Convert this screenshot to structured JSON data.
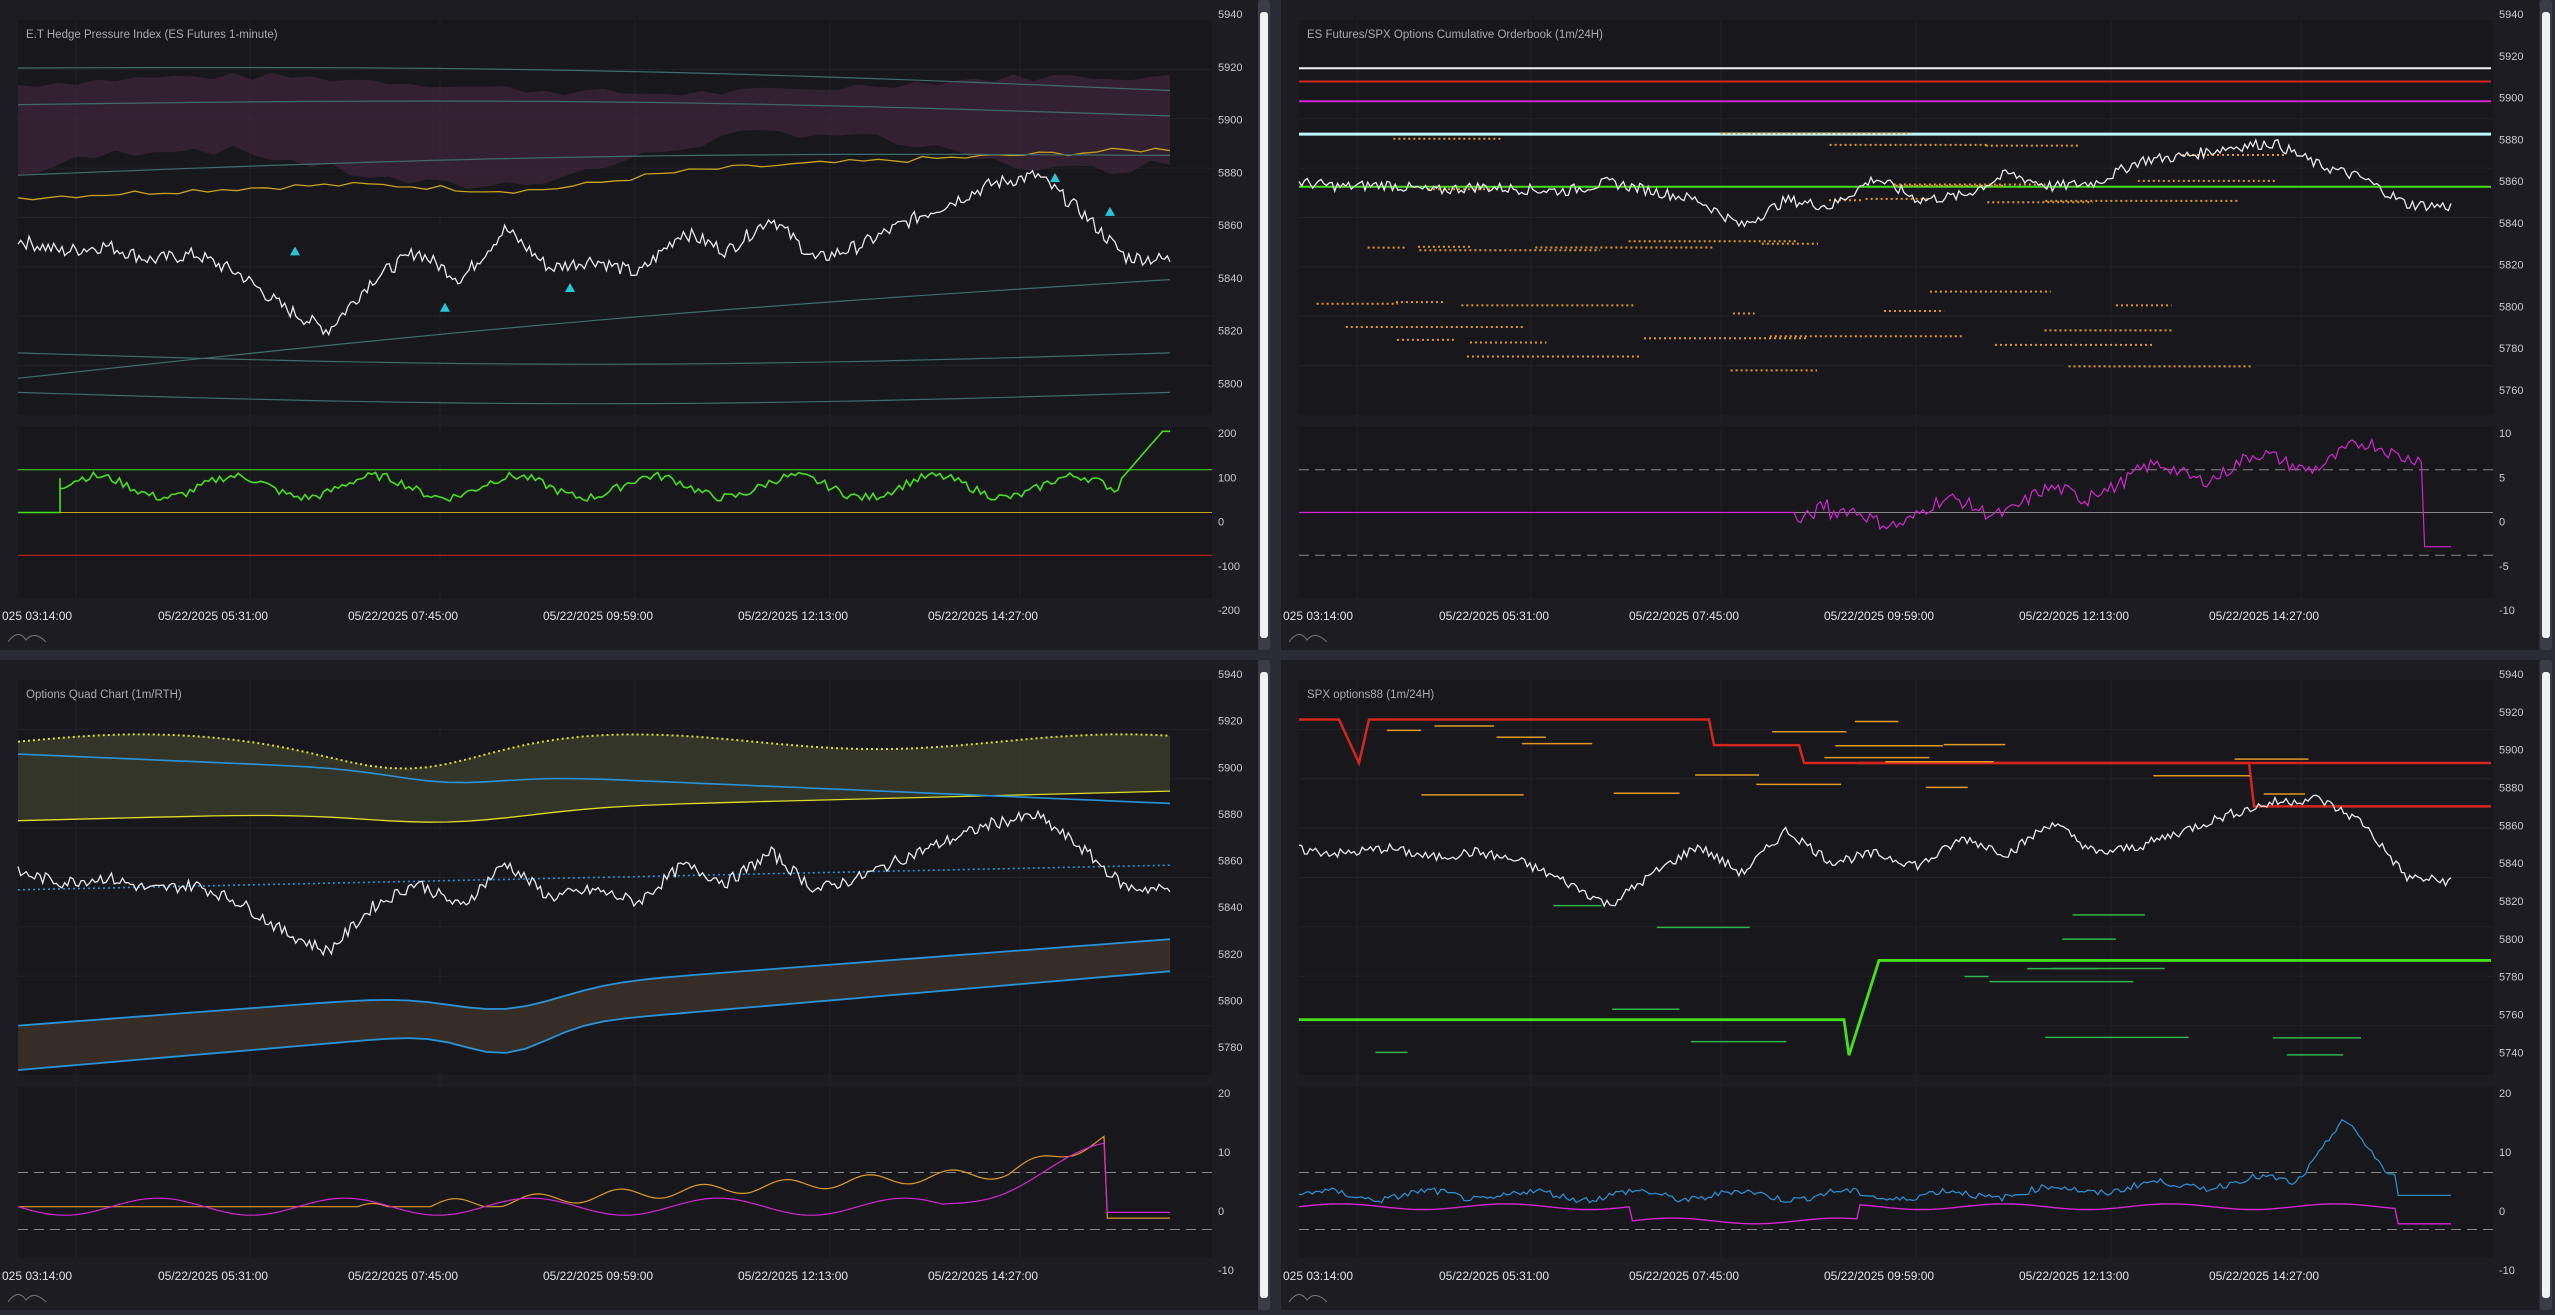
{
  "colors": {
    "price": "#e9e9ee",
    "gold": "#c9a21c",
    "purple_band": "#4a2a44",
    "teal": "#3f6d6d",
    "cyan": "#25c7d9",
    "green": "#45e01a",
    "red": "#d5261e",
    "magenta": "#d325d1",
    "blue": "#2a93d8",
    "yellow": "#dede28",
    "orange": "#e09a22"
  },
  "time_axis": {
    "labels": [
      "025 03:14:00",
      "05/22/2025 05:31:00",
      "05/22/2025 07:45:00",
      "05/22/2025 09:59:00",
      "05/22/2025 12:13:00",
      "05/22/2025 14:27:00"
    ]
  },
  "panels": [
    {
      "title": "E.T Hedge Pressure Index (ES Futures 1-minute)",
      "y_ticks": [
        "5940",
        "5920",
        "5900",
        "5880",
        "5860",
        "5840",
        "5820",
        "5800"
      ],
      "sub_ticks": [
        "200",
        "100",
        "0",
        "-100",
        "-200"
      ]
    },
    {
      "title": "ES Futures/SPX Options Cumulative Orderbook (1m/24H)",
      "y_ticks": [
        "5940",
        "5920",
        "5900",
        "5880",
        "5860",
        "5840",
        "5820",
        "5800",
        "5780",
        "5760"
      ],
      "sub_ticks": [
        "10",
        "5",
        "0",
        "-5",
        "-10"
      ]
    },
    {
      "title": "Options Quad Chart (1m/RTH)",
      "y_ticks": [
        "5940",
        "5920",
        "5900",
        "5880",
        "5860",
        "5840",
        "5820",
        "5800",
        "5780"
      ],
      "sub_ticks": [
        "20",
        "10",
        "0",
        "-10"
      ]
    },
    {
      "title": "SPX options88 (1m/24H)",
      "y_ticks": [
        "5940",
        "5920",
        "5900",
        "5880",
        "5860",
        "5840",
        "5820",
        "5800",
        "5780",
        "5760",
        "5740"
      ],
      "sub_ticks": [
        "20",
        "10",
        "0",
        "-10"
      ]
    }
  ],
  "chart_data": [
    {
      "type": "line",
      "title": "E.T Hedge Pressure Index (ES Futures 1-minute)",
      "x_range": [
        "05/22/2025 03:14:00",
        "05/22/2025 16:00:00"
      ],
      "ylim": [
        5800,
        5940
      ],
      "series": [
        {
          "values": [
            5862,
            5858,
            5860,
            5855,
            5857,
            5850,
            5838,
            5830,
            5848,
            5858,
            5848,
            5866,
            5852,
            5855,
            5850,
            5865,
            5858,
            5870,
            5855,
            5860,
            5868,
            5875,
            5882,
            5885,
            5872,
            5856,
            5855
          ]
        }
      ],
      "markers": [
        {
          "shape": "triangle-up",
          "values": [
            5858,
            5838,
            5845,
            5884,
            5872
          ]
        }
      ],
      "sub_chart": {
        "ylim": [
          -200,
          200
        ],
        "levels": [
          100,
          0,
          -100
        ]
      }
    },
    {
      "type": "line",
      "title": "ES Futures/SPX Options Cumulative Orderbook (1m/24H)",
      "x_range": [
        "05/22/2025 03:14:00",
        "05/22/2025 16:00:00"
      ],
      "ylim": [
        5760,
        5940
      ],
      "series": [
        {
          "values": [
            5866,
            5864,
            5865,
            5862,
            5864,
            5863,
            5862,
            5866,
            5862,
            5858,
            5846,
            5858,
            5855,
            5868,
            5858,
            5860,
            5870,
            5864,
            5866,
            5876,
            5878,
            5882,
            5884,
            5874,
            5868,
            5856,
            5855
          ]
        }
      ],
      "horizontal_levels": [
        {
          "value": 5918,
          "color": "white"
        },
        {
          "value": 5912,
          "color": "red"
        },
        {
          "value": 5903,
          "color": "magenta"
        },
        {
          "value": 5888,
          "color": "cyan"
        },
        {
          "value": 5864,
          "color": "green"
        }
      ],
      "sub_chart": {
        "ylim": [
          -10,
          10
        ],
        "levels": [
          5,
          0,
          -5
        ]
      }
    },
    {
      "type": "line",
      "title": "Options Quad Chart (1m/RTH)",
      "x_range": [
        "05/22/2025 03:14:00",
        "05/22/2025 16:00:00"
      ],
      "ylim": [
        5780,
        5940
      ],
      "series": [
        {
          "values": [
            5862,
            5858,
            5860,
            5855,
            5857,
            5850,
            5838,
            5830,
            5848,
            5858,
            5848,
            5866,
            5852,
            5855,
            5850,
            5865,
            5858,
            5870,
            5855,
            5860,
            5868,
            5875,
            5882,
            5885,
            5872,
            5856,
            5855
          ]
        }
      ],
      "sub_chart": {
        "ylim": [
          -10,
          20
        ],
        "levels": [
          5,
          -5
        ]
      }
    },
    {
      "type": "line",
      "title": "SPX options88 (1m/24H)",
      "x_range": [
        "05/22/2025 03:14:00",
        "05/22/2025 16:00:00"
      ],
      "ylim": [
        5740,
        5940
      ],
      "series": [
        {
          "values": [
            5854,
            5852,
            5855,
            5850,
            5853,
            5848,
            5838,
            5826,
            5842,
            5856,
            5842,
            5864,
            5848,
            5852,
            5846,
            5860,
            5852,
            5868,
            5852,
            5856,
            5864,
            5872,
            5878,
            5880,
            5868,
            5840,
            5838
          ]
        }
      ],
      "horizontal_levels": [
        {
          "value": 5920,
          "color": "red"
        },
        {
          "value": 5898,
          "color": "red"
        },
        {
          "value": 5876,
          "color": "red"
        },
        {
          "value": 5798,
          "color": "green"
        },
        {
          "value": 5768,
          "color": "green"
        }
      ],
      "sub_chart": {
        "ylim": [
          -10,
          20
        ],
        "levels": [
          5,
          -5
        ]
      }
    }
  ]
}
